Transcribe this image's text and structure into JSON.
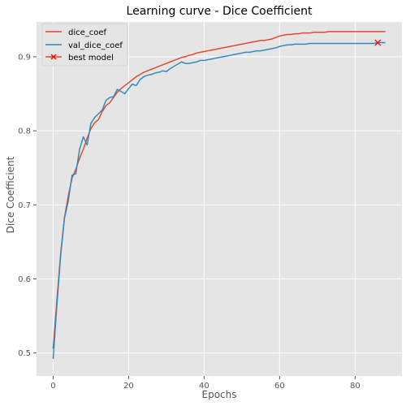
{
  "chart_data": {
    "type": "line",
    "title": "Learning curve - Dice Coefficient",
    "xlabel": "Epochs",
    "ylabel": "Dice Coefficient",
    "xlim": [
      -4.4,
      92.4
    ],
    "ylim": [
      0.469,
      0.947
    ],
    "xticks": [
      0,
      20,
      40,
      60,
      80
    ],
    "yticks": [
      0.5,
      0.6,
      0.7,
      0.8,
      0.9
    ],
    "xtick_labels": [
      "0",
      "20",
      "40",
      "60",
      "80"
    ],
    "ytick_labels": [
      "0.5",
      "0.6",
      "0.7",
      "0.8",
      "0.9"
    ],
    "grid": true,
    "legend_position": "top-left",
    "colors": {
      "dice_coef": "#E24A33",
      "val_dice_coef": "#348ABD",
      "best_model": "#FF0000",
      "plot_bg": "#E5E5E5",
      "grid": "#FFFFFF"
    },
    "series": [
      {
        "name": "dice_coef",
        "x": [
          0,
          1,
          2,
          3,
          4,
          5,
          6,
          7,
          8,
          9,
          10,
          11,
          12,
          13,
          14,
          15,
          16,
          17,
          18,
          19,
          20,
          21,
          22,
          23,
          24,
          25,
          26,
          27,
          28,
          29,
          30,
          31,
          32,
          33,
          34,
          35,
          36,
          37,
          38,
          39,
          40,
          41,
          42,
          43,
          44,
          45,
          46,
          47,
          48,
          49,
          50,
          51,
          52,
          53,
          54,
          55,
          56,
          57,
          58,
          59,
          60,
          61,
          62,
          63,
          64,
          65,
          66,
          67,
          68,
          69,
          70,
          71,
          72,
          73,
          74,
          75,
          76,
          77,
          78,
          79,
          80,
          81,
          82,
          83,
          84,
          85,
          86,
          87,
          88
        ],
        "values": [
          0.506,
          0.572,
          0.635,
          0.683,
          0.712,
          0.736,
          0.748,
          0.763,
          0.775,
          0.79,
          0.803,
          0.811,
          0.815,
          0.826,
          0.834,
          0.838,
          0.845,
          0.852,
          0.857,
          0.861,
          0.865,
          0.869,
          0.873,
          0.876,
          0.879,
          0.881,
          0.883,
          0.885,
          0.887,
          0.889,
          0.891,
          0.893,
          0.895,
          0.897,
          0.899,
          0.9,
          0.902,
          0.903,
          0.905,
          0.906,
          0.907,
          0.908,
          0.909,
          0.91,
          0.911,
          0.912,
          0.913,
          0.914,
          0.915,
          0.916,
          0.917,
          0.918,
          0.919,
          0.92,
          0.921,
          0.922,
          0.922,
          0.923,
          0.924,
          0.926,
          0.928,
          0.929,
          0.93,
          0.93,
          0.931,
          0.931,
          0.932,
          0.932,
          0.932,
          0.933,
          0.933,
          0.933,
          0.933,
          0.934,
          0.934,
          0.934,
          0.934,
          0.934,
          0.934,
          0.934,
          0.934,
          0.934,
          0.934,
          0.934,
          0.934,
          0.934,
          0.934,
          0.934,
          0.934
        ]
      },
      {
        "name": "val_dice_coef",
        "x": [
          0,
          1,
          2,
          3,
          4,
          5,
          6,
          7,
          8,
          9,
          10,
          11,
          12,
          13,
          14,
          15,
          16,
          17,
          18,
          19,
          20,
          21,
          22,
          23,
          24,
          25,
          26,
          27,
          28,
          29,
          30,
          31,
          32,
          33,
          34,
          35,
          36,
          37,
          38,
          39,
          40,
          41,
          42,
          43,
          44,
          45,
          46,
          47,
          48,
          49,
          50,
          51,
          52,
          53,
          54,
          55,
          56,
          57,
          58,
          59,
          60,
          61,
          62,
          63,
          64,
          65,
          66,
          67,
          68,
          69,
          70,
          71,
          72,
          73,
          74,
          75,
          76,
          77,
          78,
          79,
          80,
          81,
          82,
          83,
          84,
          85,
          86,
          87,
          88
        ],
        "values": [
          0.492,
          0.565,
          0.632,
          0.682,
          0.705,
          0.74,
          0.742,
          0.775,
          0.792,
          0.781,
          0.81,
          0.818,
          0.823,
          0.828,
          0.841,
          0.845,
          0.846,
          0.856,
          0.853,
          0.85,
          0.857,
          0.863,
          0.861,
          0.869,
          0.873,
          0.875,
          0.876,
          0.878,
          0.879,
          0.881,
          0.88,
          0.884,
          0.887,
          0.89,
          0.893,
          0.891,
          0.891,
          0.892,
          0.893,
          0.895,
          0.895,
          0.896,
          0.897,
          0.898,
          0.899,
          0.9,
          0.901,
          0.902,
          0.903,
          0.904,
          0.905,
          0.906,
          0.906,
          0.907,
          0.908,
          0.908,
          0.909,
          0.91,
          0.911,
          0.912,
          0.914,
          0.915,
          0.916,
          0.916,
          0.917,
          0.917,
          0.917,
          0.917,
          0.918,
          0.918,
          0.918,
          0.918,
          0.918,
          0.918,
          0.918,
          0.918,
          0.918,
          0.918,
          0.918,
          0.918,
          0.918,
          0.918,
          0.918,
          0.918,
          0.918,
          0.918,
          0.919,
          0.919,
          0.919
        ]
      }
    ],
    "best_model": {
      "name": "best model",
      "x": 86,
      "y": 0.919
    }
  }
}
